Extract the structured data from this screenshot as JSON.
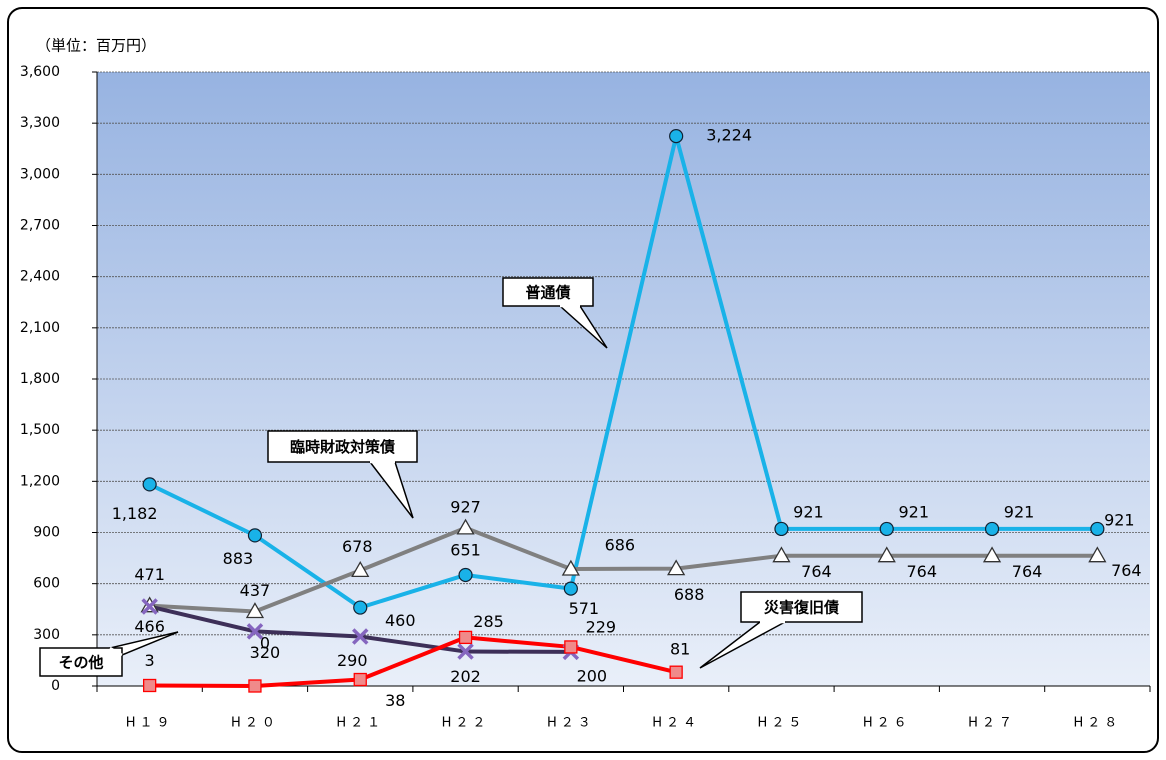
{
  "chart_data": {
    "type": "line",
    "unit_label": "（単位：百万円）",
    "categories": [
      "H１９",
      "H２０",
      "H２１",
      "H２２",
      "H２３",
      "H２４",
      "H２５",
      "H２６",
      "H２７",
      "H２８"
    ],
    "series": [
      {
        "name": "普通債",
        "color": "#19b2e8",
        "marker": "circle",
        "values": [
          1182,
          883,
          460,
          651,
          571,
          3224,
          921,
          921,
          921,
          921
        ],
        "value_labels": [
          "1,182",
          "883",
          "460",
          "651",
          "571",
          "3,224",
          "921",
          "921",
          "921",
          "921"
        ]
      },
      {
        "name": "臨時財政対策債",
        "color": "#808080",
        "marker": "triangle",
        "values": [
          471,
          437,
          678,
          927,
          686,
          688,
          764,
          764,
          764,
          764
        ]
      },
      {
        "name": "その他",
        "color": "#3d2f58",
        "marker": "x",
        "values": [
          466,
          320,
          290,
          202,
          200,
          null,
          null,
          null,
          null,
          null
        ]
      },
      {
        "name": "災害復旧債",
        "color": "#ff0000",
        "marker": "square",
        "values": [
          3,
          0,
          38,
          285,
          229,
          81,
          null,
          null,
          null,
          null
        ]
      }
    ],
    "ylim": [
      0,
      3600
    ],
    "yticks": [
      0,
      300,
      600,
      900,
      {
        "value": 1200,
        "label": "1,200"
      },
      {
        "value": 1500,
        "label": "1,500"
      },
      {
        "value": 1800,
        "label": "1,800"
      },
      {
        "value": 2100,
        "label": "2,100"
      },
      {
        "value": 2400,
        "label": "2,400"
      },
      {
        "value": 2700,
        "label": "2,700"
      },
      {
        "value": 3000,
        "label": "3,000"
      },
      {
        "value": 3300,
        "label": "3,300"
      },
      {
        "value": 3600,
        "label": "3,600"
      }
    ],
    "grid": true
  }
}
